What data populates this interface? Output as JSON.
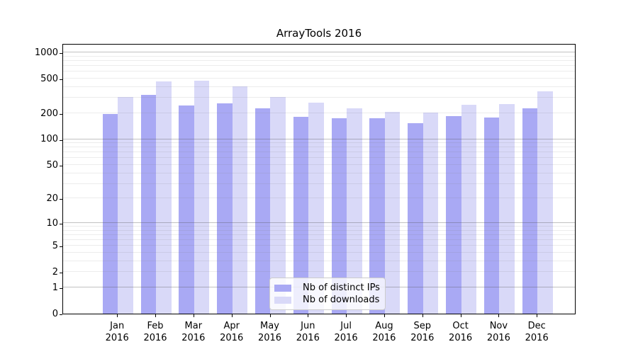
{
  "chart_data": {
    "type": "bar",
    "title": "ArrayTools 2016",
    "categories": [
      "Jan",
      "Feb",
      "Mar",
      "Apr",
      "May",
      "Jun",
      "Jul",
      "Aug",
      "Sep",
      "Oct",
      "Nov",
      "Dec"
    ],
    "x_year_label": "2016",
    "series": [
      {
        "name": "Nb of distinct IPs",
        "color": "#a9a9f4",
        "values": [
          195,
          322,
          245,
          260,
          226,
          181,
          173,
          175,
          154,
          184,
          177,
          229
        ]
      },
      {
        "name": "Nb of downloads",
        "color": "#d9d9f8",
        "values": [
          305,
          462,
          471,
          404,
          307,
          266,
          227,
          205,
          204,
          250,
          255,
          356
        ]
      }
    ],
    "yscale": "log(value+1)",
    "ylim": [
      0,
      1310
    ],
    "yticks": [
      1000,
      500,
      200,
      100,
      50,
      20,
      10,
      5,
      2,
      1,
      0
    ],
    "grid": "on",
    "legend_position": "lower-center"
  }
}
